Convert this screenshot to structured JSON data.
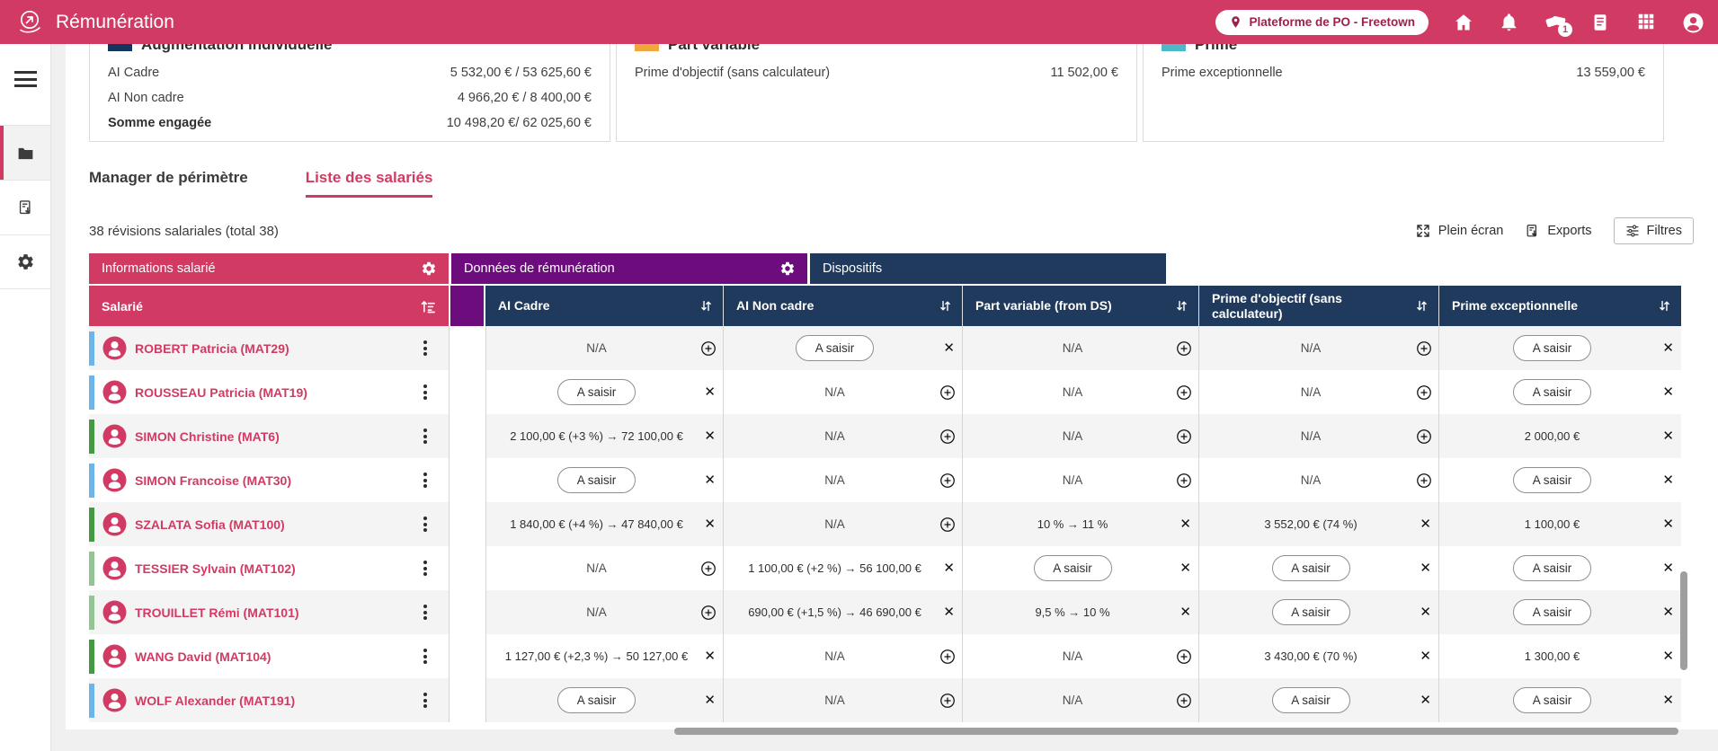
{
  "header": {
    "app_title": "Rémunération",
    "location_badge": "Plateforme de PO - Freetown",
    "notification_count": "1"
  },
  "summary_cards": [
    {
      "title": "Augmentation individuelle",
      "swatch_color": "#14355f",
      "rows": [
        {
          "label": "AI Cadre",
          "value": "5 532,00 €  / 53 625,60 €"
        },
        {
          "label": "AI Non cadre",
          "value": "4 966,20 €  /  8 400,00 €"
        },
        {
          "label": "Somme engagée",
          "value": "10 498,20 €/ 62 025,60 €"
        }
      ]
    },
    {
      "title": "Part variable",
      "swatch_color": "#efa73e",
      "rows": [
        {
          "label": "Prime d'objectif (sans calculateur)",
          "value": "11 502,00 €"
        }
      ]
    },
    {
      "title": "Prime",
      "swatch_color": "#4db9c6",
      "rows": [
        {
          "label": "Prime exceptionnelle",
          "value": "13 559,00 €"
        }
      ]
    }
  ],
  "tabs": [
    {
      "label": "Manager de périmètre",
      "active": false
    },
    {
      "label": "Liste des salariés",
      "active": true
    }
  ],
  "toolbar": {
    "count_text": "38 révisions salariales (total 38)",
    "fullscreen_label": "Plein écran",
    "exports_label": "Exports",
    "filters_label": "Filtres"
  },
  "table": {
    "na_label": "N/A",
    "saisir_label": "A saisir",
    "groups": [
      {
        "label": "Informations salarié",
        "color": "#d13b63",
        "gear": true
      },
      {
        "label": "Données de rémunération",
        "color": "#6d0c7d",
        "gear": true
      },
      {
        "label": "Dispositifs",
        "color": "#1f3a5c",
        "gear": false
      }
    ],
    "columns": [
      {
        "label": "Salarié"
      },
      {
        "label": "AI Cadre"
      },
      {
        "label": "AI Non cadre"
      },
      {
        "label": "Part variable (from DS)"
      },
      {
        "label": "Prime d'objectif (sans calculateur)"
      },
      {
        "label": "Prime exceptionnelle"
      }
    ],
    "rows": [
      {
        "name": "ROBERT Patricia (MAT29)",
        "bar": "blue",
        "cells": [
          {
            "type": "na"
          },
          {
            "type": "saisir"
          },
          {
            "type": "na"
          },
          {
            "type": "na"
          },
          {
            "type": "saisir"
          }
        ]
      },
      {
        "name": "ROUSSEAU Patricia (MAT19)",
        "bar": "blue",
        "cells": [
          {
            "type": "saisir"
          },
          {
            "type": "na"
          },
          {
            "type": "na"
          },
          {
            "type": "na"
          },
          {
            "type": "saisir"
          }
        ]
      },
      {
        "name": "SIMON Christine (MAT6)",
        "bar": "green",
        "cells": [
          {
            "type": "value",
            "value": "2 100,00 € (+3 %) → 72 100,00 €"
          },
          {
            "type": "na"
          },
          {
            "type": "na"
          },
          {
            "type": "na"
          },
          {
            "type": "value",
            "value": "2 000,00 €"
          }
        ]
      },
      {
        "name": "SIMON Francoise (MAT30)",
        "bar": "blue",
        "cells": [
          {
            "type": "saisir"
          },
          {
            "type": "na"
          },
          {
            "type": "na"
          },
          {
            "type": "na"
          },
          {
            "type": "saisir"
          }
        ]
      },
      {
        "name": "SZALATA Sofia (MAT100)",
        "bar": "green",
        "cells": [
          {
            "type": "value",
            "value": "1 840,00 € (+4 %) → 47 840,00 €"
          },
          {
            "type": "na"
          },
          {
            "type": "value",
            "value": "10 % → 11 %"
          },
          {
            "type": "value",
            "value": "3 552,00 € (74 %)"
          },
          {
            "type": "value",
            "value": "1 100,00 €"
          }
        ]
      },
      {
        "name": "TESSIER Sylvain (MAT102)",
        "bar": "lightgreen",
        "cells": [
          {
            "type": "na"
          },
          {
            "type": "value",
            "value": "1 100,00 € (+2 %) → 56 100,00 €"
          },
          {
            "type": "saisir"
          },
          {
            "type": "saisir"
          },
          {
            "type": "saisir"
          }
        ]
      },
      {
        "name": "TROUILLET Rémi (MAT101)",
        "bar": "lightgreen",
        "cells": [
          {
            "type": "na"
          },
          {
            "type": "value",
            "value": "690,00 € (+1,5 %) → 46 690,00 €"
          },
          {
            "type": "value",
            "value": "9,5 % → 10 %"
          },
          {
            "type": "saisir"
          },
          {
            "type": "saisir"
          }
        ]
      },
      {
        "name": "WANG David (MAT104)",
        "bar": "green",
        "cells": [
          {
            "type": "value",
            "value": "1 127,00 € (+2,3 %) → 50 127,00 €"
          },
          {
            "type": "na"
          },
          {
            "type": "na"
          },
          {
            "type": "value",
            "value": "3 430,00 € (70 %)"
          },
          {
            "type": "value",
            "value": "1 300,00 €"
          }
        ]
      },
      {
        "name": "WOLF Alexander (MAT191)",
        "bar": "blue",
        "cells": [
          {
            "type": "saisir"
          },
          {
            "type": "na"
          },
          {
            "type": "na"
          },
          {
            "type": "saisir"
          },
          {
            "type": "saisir"
          }
        ]
      }
    ]
  }
}
